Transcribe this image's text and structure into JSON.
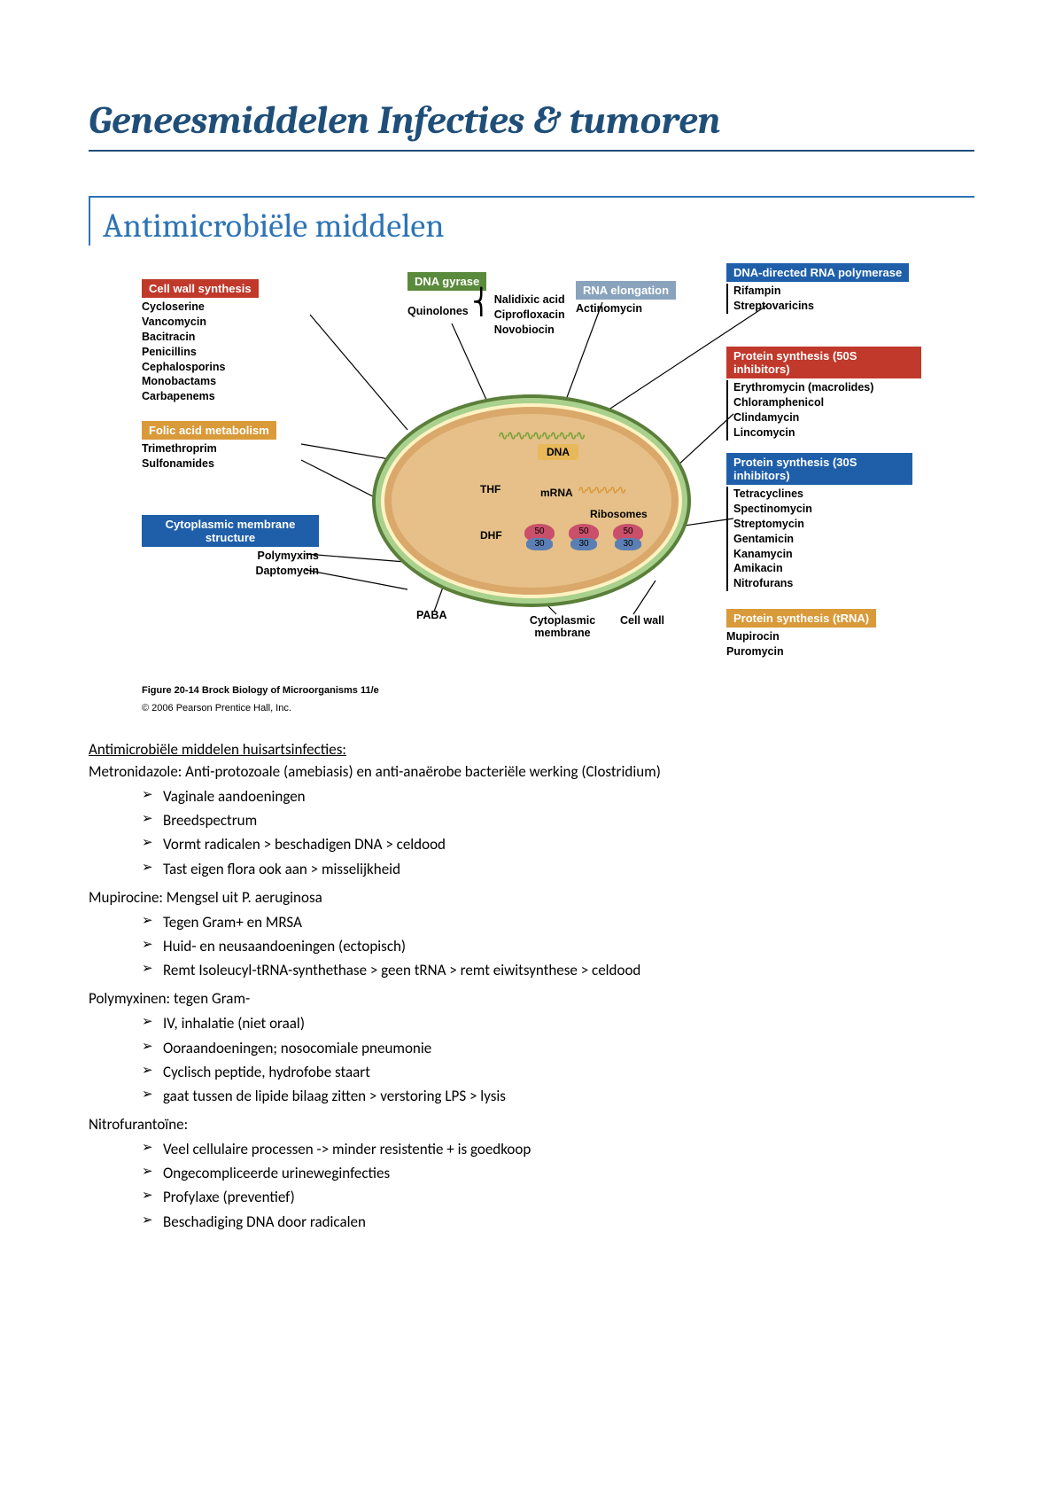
{
  "title": "Geneesmiddelen Infecties & tumoren",
  "section_heading": "Antimicrobiële middelen",
  "diagram": {
    "colors": {
      "title": "#1f4e79",
      "section": "#2e74b5",
      "header_blue": "#1f5faa",
      "header_red": "#c0392b",
      "header_orange": "#d99a3a",
      "header_green": "#5a8a3c",
      "cell_outer": "#5a7f3a",
      "cell_fill": "#e6c088"
    },
    "cell_wall": {
      "header": "Cell wall synthesis",
      "drugs": [
        "Cycloserine",
        "Vancomycin",
        "Bacitracin",
        "Penicillins",
        "Cephalosporins",
        "Monobactams",
        "Carbapenems"
      ]
    },
    "dna_gyrase": {
      "header": "DNA gyrase",
      "link_label": "Quinolones",
      "drugs": [
        "Nalidixic acid",
        "Ciprofloxacin",
        "Novobiocin"
      ]
    },
    "rna_elong": {
      "header": "RNA elongation",
      "drug": "Actinomycin"
    },
    "dna_polymerase": {
      "header": "DNA-directed RNA polymerase",
      "drugs": [
        "Rifampin",
        "Streptovaricins"
      ]
    },
    "protein_50s": {
      "header": "Protein synthesis (50S inhibitors)",
      "drugs": [
        "Erythromycin (macrolides)",
        "Chloramphenicol",
        "Clindamycin",
        "Lincomycin"
      ]
    },
    "protein_30s": {
      "header": "Protein synthesis (30S inhibitors)",
      "drugs": [
        "Tetracyclines",
        "Spectinomycin",
        "Streptomycin",
        "Gentamicin",
        "Kanamycin",
        "Amikacin",
        "Nitrofurans"
      ]
    },
    "protein_trna": {
      "header": "Protein synthesis (tRNA)",
      "drugs": [
        "Mupirocin",
        "Puromycin"
      ]
    },
    "folic": {
      "header": "Folic acid metabolism",
      "drugs": [
        "Trimethroprim",
        "Sulfonamides"
      ]
    },
    "cyto_membrane": {
      "header": "Cytoplasmic membrane structure",
      "drugs": [
        "Polymyxins",
        "Daptomycin"
      ]
    },
    "internal_labels": {
      "dna": "DNA",
      "mrna": "mRNA",
      "thf": "THF",
      "dhf": "DHF",
      "paba": "PABA",
      "ribosomes": "Ribosomes",
      "cyto_mem": "Cytoplasmic membrane",
      "cell_wall": "Cell wall",
      "r50": "50",
      "r30": "30"
    },
    "caption_line1": "Figure 20-14  Brock Biology of Microorganisms 11/e",
    "caption_line2": "© 2006 Pearson Prentice Hall, Inc."
  },
  "body": {
    "subheading": "Antimicrobiële middelen huisartsinfecties:",
    "groups": [
      {
        "intro": "Metronidazole: Anti-protozoale (amebiasis) en anti-anaërobe bacteriële werking (Clostridium)",
        "bullets": [
          "Vaginale aandoeningen",
          "Breedspectrum",
          "Vormt radicalen > beschadigen DNA > celdood",
          "Tast eigen flora ook aan > misselijkheid"
        ]
      },
      {
        "intro": "Mupirocine: Mengsel uit P. aeruginosa",
        "bullets": [
          "Tegen Gram+ en MRSA",
          "Huid- en neusaandoeningen (ectopisch)",
          "Remt Isoleucyl-tRNA-synthethase > geen tRNA > remt eiwitsynthese > celdood"
        ]
      },
      {
        "intro": "Polymyxinen: tegen Gram-",
        "bullets": [
          "IV, inhalatie (niet oraal)",
          "Ooraandoeningen; nosocomiale pneumonie",
          "Cyclisch peptide, hydrofobe staart",
          "gaat tussen de lipide bilaag zitten > verstoring LPS > lysis"
        ]
      },
      {
        "intro": "Nitrofurantoïne:",
        "bullets": [
          "Veel cellulaire processen -> minder resistentie + is goedkoop",
          "Ongecompliceerde urineweginfecties",
          "Profylaxe (preventief)",
          "Beschadiging DNA door radicalen"
        ]
      }
    ]
  }
}
